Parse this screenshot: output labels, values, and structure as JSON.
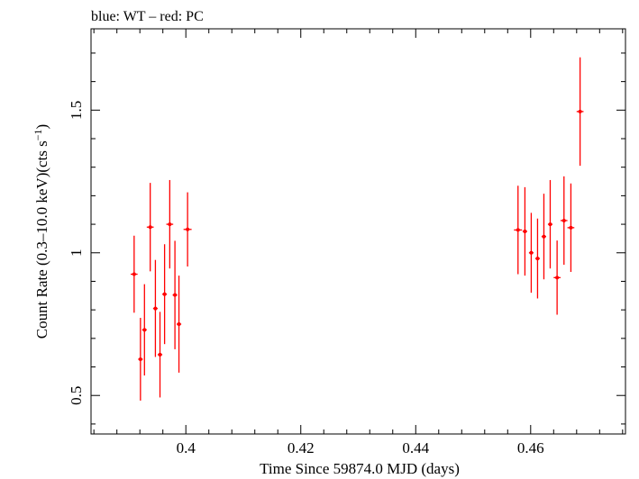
{
  "chart_data": {
    "type": "scatter",
    "title": "blue: WT – red: PC",
    "xlabel": "Time Since 59874.0 MJD (days)",
    "ylabel_main": "Count Rate (0.3–10.0 keV)(cts s",
    "ylabel_sup": "−1",
    "ylabel_end": ")",
    "xlim": [
      0.3835,
      0.4765
    ],
    "ylim": [
      0.365,
      1.785
    ],
    "xticks": [
      0.4,
      0.42,
      0.44,
      0.46
    ],
    "xtick_labels": [
      "0.4",
      "0.42",
      "0.44",
      "0.46"
    ],
    "yticks": [
      0.5,
      1.0,
      1.5
    ],
    "ytick_labels": [
      "0.5",
      "1",
      "1.5"
    ],
    "grid": false,
    "series": [
      {
        "color": "#ff0000",
        "points": [
          {
            "x": 0.391,
            "y": 0.925,
            "xerr": 0.0006,
            "yerr": 0.135
          },
          {
            "x": 0.3921,
            "y": 0.627,
            "xerr": 0.0004,
            "yerr": 0.145
          },
          {
            "x": 0.3928,
            "y": 0.73,
            "xerr": 0.0004,
            "yerr": 0.16
          },
          {
            "x": 0.3938,
            "y": 1.09,
            "xerr": 0.0006,
            "yerr": 0.155
          },
          {
            "x": 0.3947,
            "y": 0.805,
            "xerr": 0.0004,
            "yerr": 0.17
          },
          {
            "x": 0.3955,
            "y": 0.643,
            "xerr": 0.0004,
            "yerr": 0.15
          },
          {
            "x": 0.3963,
            "y": 0.855,
            "xerr": 0.0004,
            "yerr": 0.175
          },
          {
            "x": 0.3972,
            "y": 1.1,
            "xerr": 0.0006,
            "yerr": 0.155
          },
          {
            "x": 0.3981,
            "y": 0.852,
            "xerr": 0.0004,
            "yerr": 0.19
          },
          {
            "x": 0.3988,
            "y": 0.75,
            "xerr": 0.0004,
            "yerr": 0.17
          },
          {
            "x": 0.4003,
            "y": 1.082,
            "xerr": 0.0007,
            "yerr": 0.13
          },
          {
            "x": 0.4578,
            "y": 1.08,
            "xerr": 0.0007,
            "yerr": 0.155
          },
          {
            "x": 0.459,
            "y": 1.075,
            "xerr": 0.0004,
            "yerr": 0.155
          },
          {
            "x": 0.4601,
            "y": 1.0,
            "xerr": 0.0004,
            "yerr": 0.14
          },
          {
            "x": 0.4612,
            "y": 0.98,
            "xerr": 0.0004,
            "yerr": 0.14
          },
          {
            "x": 0.4623,
            "y": 1.057,
            "xerr": 0.0004,
            "yerr": 0.15
          },
          {
            "x": 0.4634,
            "y": 1.1,
            "xerr": 0.0004,
            "yerr": 0.155
          },
          {
            "x": 0.4646,
            "y": 0.913,
            "xerr": 0.0006,
            "yerr": 0.13
          },
          {
            "x": 0.4658,
            "y": 1.113,
            "xerr": 0.0006,
            "yerr": 0.155
          },
          {
            "x": 0.467,
            "y": 1.088,
            "xerr": 0.0006,
            "yerr": 0.155
          },
          {
            "x": 0.4686,
            "y": 1.495,
            "xerr": 0.0006,
            "yerr": 0.19
          }
        ]
      }
    ]
  }
}
